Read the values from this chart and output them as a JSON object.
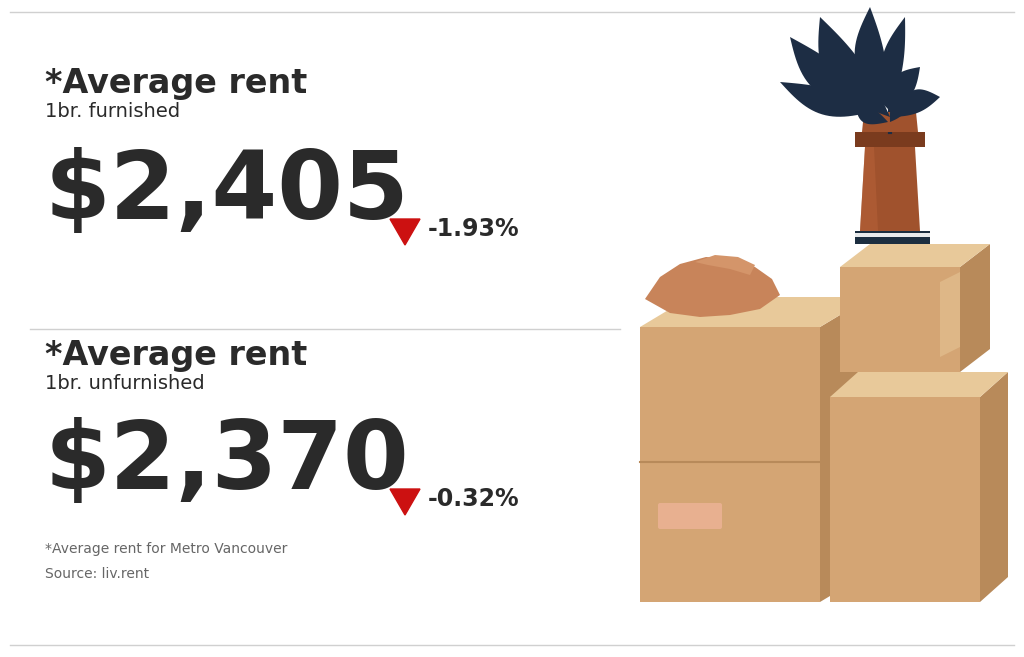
{
  "bg_color": "#ffffff",
  "border_color": "#d0d0d0",
  "text_color_dark": "#2a2a2a",
  "text_color_gray": "#666666",
  "red_color": "#cc1111",
  "section1": {
    "title": "*Average rent",
    "subtitle": "1br. furnished",
    "value": "$2,405",
    "change": "-1.93%"
  },
  "section2": {
    "title": "*Average rent",
    "subtitle": "1br. unfurnished",
    "value": "$2,370",
    "change": "-0.32%"
  },
  "footnote1": "*Average rent for Metro Vancouver",
  "footnote2": "Source: liv.rent",
  "plant_colors": {
    "leaves": "#1d2d44",
    "pot": "#a0522d",
    "pot_highlight": "#b8633a",
    "pot_shadow": "#7a3b1e",
    "book_dark": "#1c2e40",
    "book_white": "#e8eaec",
    "box_front": "#d4a574",
    "box_top": "#e8c99a",
    "box_shadow": "#b88a5a",
    "box_dark_side": "#c49060",
    "hand": "#c8845a",
    "hand_highlight": "#d4956a",
    "label": "#e8b090"
  }
}
